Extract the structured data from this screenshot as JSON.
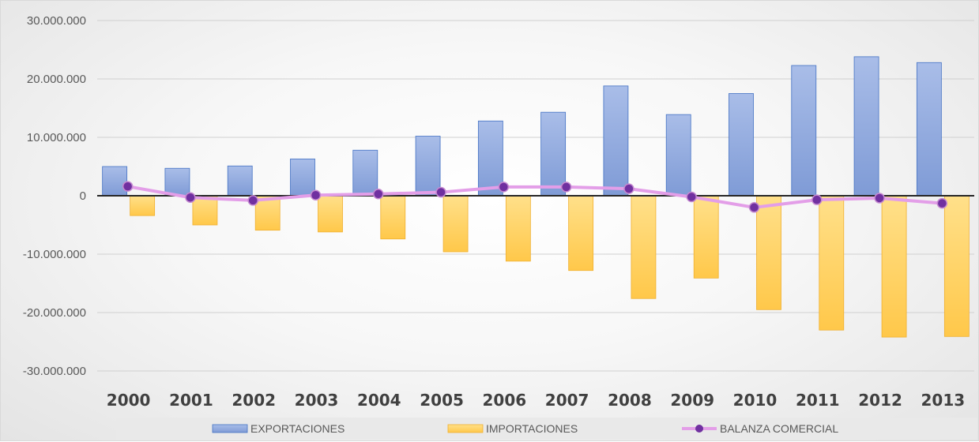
{
  "chart_data": {
    "type": "bar",
    "title": "",
    "xlabel": "",
    "ylabel": "",
    "categories": [
      "2000",
      "2001",
      "2002",
      "2003",
      "2004",
      "2005",
      "2006",
      "2007",
      "2008",
      "2009",
      "2010",
      "2011",
      "2012",
      "2013"
    ],
    "series": [
      {
        "name": "EXPORTACIONES",
        "kind": "bar",
        "color": "#8faadc",
        "values": [
          5000000,
          4700000,
          5100000,
          6300000,
          7800000,
          10200000,
          12800000,
          14300000,
          18800000,
          13900000,
          17500000,
          22300000,
          23800000,
          22800000
        ]
      },
      {
        "name": "IMPORTACIONES",
        "kind": "bar",
        "color": "#ffd966",
        "values": [
          -3400000,
          -5000000,
          -5900000,
          -6200000,
          -7400000,
          -9600000,
          -11200000,
          -12800000,
          -17600000,
          -14100000,
          -19500000,
          -23000000,
          -24200000,
          -24100000
        ]
      },
      {
        "name": "BALANZA COMERCIAL",
        "kind": "line",
        "color": "#e39ee8",
        "marker_color": "#7030a0",
        "values": [
          1600000,
          -300000,
          -800000,
          100000,
          300000,
          600000,
          1500000,
          1500000,
          1200000,
          -200000,
          -2000000,
          -700000,
          -400000,
          -1300000
        ]
      }
    ],
    "ylim": [
      -30000000,
      30000000
    ],
    "yticks": [
      30000000,
      20000000,
      10000000,
      0,
      -10000000,
      -20000000,
      -30000000
    ],
    "ytick_labels": [
      "30.000.000",
      "20.000.000",
      "10.000.000",
      "0",
      "-10.000.000",
      "-20.000.000",
      "-30.000.000"
    ],
    "grid": true,
    "legend": "bottom"
  }
}
